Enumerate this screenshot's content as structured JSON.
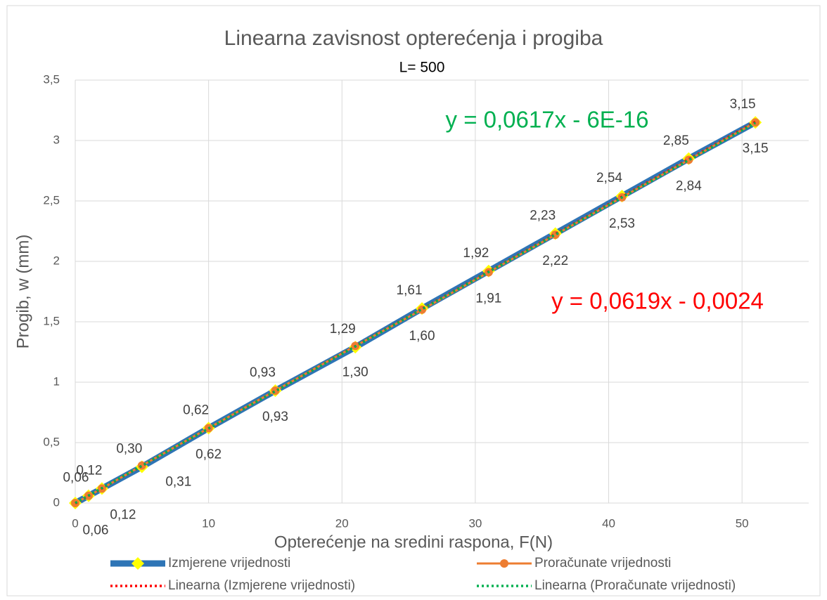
{
  "chart_data": {
    "type": "line",
    "title": "Linearna zavisnost opterećenja i progiba",
    "subtitle": "L= 500",
    "x_label": "Opterećenje na sredini raspona, F(N)",
    "y_label": "Progib, w (mm)",
    "x": [
      0,
      1,
      2,
      5,
      10,
      15,
      21,
      26,
      31,
      36,
      41,
      46,
      51
    ],
    "xlim": [
      0,
      55
    ],
    "xticks": [
      0,
      10,
      20,
      30,
      40,
      50
    ],
    "ylim": [
      0,
      3.5
    ],
    "yticks": [
      0,
      {
        "value": 0.5,
        "label": "0,5"
      },
      1,
      {
        "value": 1.5,
        "label": "1,5"
      },
      2,
      {
        "value": 2.5,
        "label": "2,5"
      },
      3,
      {
        "value": 3.5,
        "label": "3,5"
      }
    ],
    "grid": true,
    "legend": "bottom",
    "series": [
      {
        "name": "Izmjerene vrijednosti",
        "color": "#2e75b6",
        "marker_color": "#ffff00",
        "marker": "diamond",
        "values": [
          0,
          0.06,
          0.12,
          0.3,
          0.62,
          0.93,
          1.29,
          1.61,
          1.92,
          2.23,
          2.54,
          2.85,
          3.15
        ],
        "value_labels": [
          null,
          "0,06",
          "0,12",
          "0,30",
          "0,62",
          "0,93",
          "1,29",
          "1,61",
          "1,92",
          "2,23",
          "2,54",
          "2,85",
          "3,15"
        ]
      },
      {
        "name": "Proračunate vrijednosti",
        "color": "#ed7d31",
        "marker": "circle",
        "values": [
          0,
          0.06,
          0.12,
          0.31,
          0.62,
          0.93,
          1.3,
          1.6,
          1.91,
          2.22,
          2.53,
          2.84,
          3.15
        ],
        "value_labels": [
          null,
          "0,06",
          "0,12",
          "0,31",
          "0,62",
          "0,93",
          "1,30",
          "1,60",
          "1,91",
          "2,22",
          "2,53",
          "2,84",
          "3,15"
        ]
      }
    ],
    "trendlines": [
      {
        "name": "Linearna (Izmjerene vrijednosti)",
        "color": "#ff0000",
        "equation": "y = 0,0619x - 0,0024",
        "slope": 0.0619,
        "intercept": -0.0024
      },
      {
        "name": "Linearna (Proračunate vrijednosti)",
        "color": "#00b050",
        "equation": "y = 0,0617x - 6E-16",
        "slope": 0.0617,
        "intercept": -6e-16
      }
    ]
  }
}
